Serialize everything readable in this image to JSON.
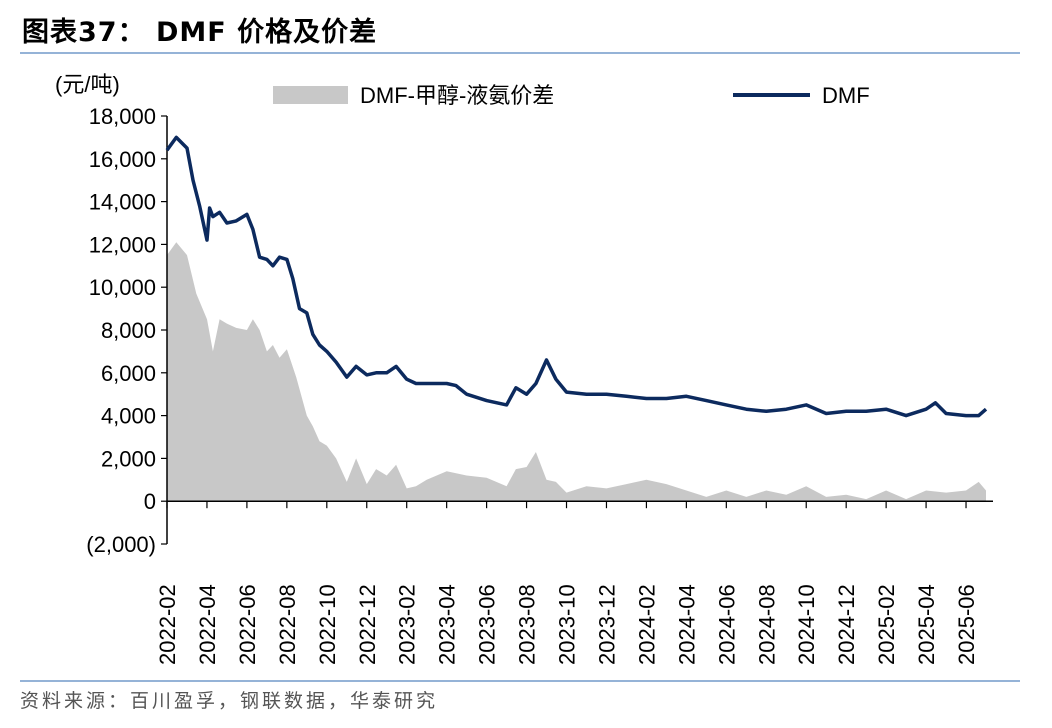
{
  "header": {
    "title": "图表37：  DMF 价格及价差"
  },
  "footer": {
    "source": "资料来源：百川盈孚，钢联数据，华泰研究"
  },
  "chart_data": {
    "type": "area",
    "ylabel": "(元/吨)",
    "ylim": [
      -2000,
      18000
    ],
    "y_ticks": [
      -2000,
      0,
      2000,
      4000,
      6000,
      8000,
      10000,
      12000,
      14000,
      16000,
      18000
    ],
    "y_tick_labels": [
      "(2,000)",
      "0",
      "2,000",
      "4,000",
      "6,000",
      "8,000",
      "10,000",
      "12,000",
      "14,000",
      "16,000",
      "18,000"
    ],
    "x_tick_labels": [
      "2022-02",
      "2022-04",
      "2022-06",
      "2022-08",
      "2022-10",
      "2022-12",
      "2023-02",
      "2023-04",
      "2023-06",
      "2023-08",
      "2023-10",
      "2023-12",
      "2024-02",
      "2024-04",
      "2024-06",
      "2024-08",
      "2024-10",
      "2024-12",
      "2025-02",
      "2025-04",
      "2025-06"
    ],
    "legend_position": "top",
    "grid": false,
    "series": [
      {
        "name": "DMF-甲醇-液氨价差",
        "type": "area",
        "color": "#c8c8c8",
        "x": [
          "2022-02",
          "2022-02-15",
          "2022-03",
          "2022-03-15",
          "2022-04",
          "2022-04-10",
          "2022-04-20",
          "2022-05",
          "2022-05-15",
          "2022-06",
          "2022-06-10",
          "2022-06-20",
          "2022-07",
          "2022-07-10",
          "2022-07-20",
          "2022-08",
          "2022-08-15",
          "2022-09",
          "2022-09-10",
          "2022-09-20",
          "2022-10",
          "2022-10-15",
          "2022-11",
          "2022-11-15",
          "2022-12",
          "2022-12-15",
          "2023-01",
          "2023-01-15",
          "2023-02",
          "2023-02-15",
          "2023-03",
          "2023-04",
          "2023-05",
          "2023-06",
          "2023-07",
          "2023-07-15",
          "2023-08",
          "2023-08-15",
          "2023-09",
          "2023-09-15",
          "2023-10",
          "2023-11",
          "2023-12",
          "2024-01",
          "2024-02",
          "2024-03",
          "2024-04",
          "2024-05",
          "2024-06",
          "2024-07",
          "2024-08",
          "2024-09",
          "2024-10",
          "2024-11",
          "2024-12",
          "2025-01",
          "2025-02",
          "2025-03",
          "2025-04",
          "2025-05",
          "2025-06",
          "2025-06-20",
          "2025-07"
        ],
        "values": [
          11500,
          12100,
          11500,
          9700,
          8500,
          7000,
          8500,
          8300,
          8100,
          8000,
          8500,
          8000,
          7000,
          7300,
          6700,
          7100,
          5800,
          4000,
          3500,
          2800,
          2600,
          2000,
          900,
          2000,
          800,
          1500,
          1200,
          1700,
          600,
          700,
          1000,
          1400,
          1200,
          1100,
          700,
          1500,
          1600,
          2300,
          1000,
          900,
          400,
          700,
          600,
          800,
          1000,
          800,
          500,
          200,
          500,
          200,
          500,
          300,
          700,
          200,
          300,
          100,
          500,
          100,
          500,
          400,
          500,
          900,
          500
        ]
      },
      {
        "name": "DMF",
        "type": "line",
        "color": "#0c2a5e",
        "x": [
          "2022-02",
          "2022-02-15",
          "2022-03",
          "2022-03-10",
          "2022-03-20",
          "2022-04",
          "2022-04-05",
          "2022-04-10",
          "2022-04-20",
          "2022-05",
          "2022-05-15",
          "2022-06",
          "2022-06-10",
          "2022-06-20",
          "2022-07",
          "2022-07-10",
          "2022-07-20",
          "2022-08",
          "2022-08-10",
          "2022-08-20",
          "2022-09",
          "2022-09-10",
          "2022-09-20",
          "2022-10",
          "2022-10-15",
          "2022-11",
          "2022-11-15",
          "2022-12",
          "2022-12-15",
          "2023-01",
          "2023-01-15",
          "2023-02",
          "2023-02-15",
          "2023-03",
          "2023-04",
          "2023-04-15",
          "2023-05",
          "2023-06",
          "2023-07",
          "2023-07-15",
          "2023-08",
          "2023-08-15",
          "2023-09",
          "2023-09-15",
          "2023-10",
          "2023-11",
          "2023-12",
          "2024-01",
          "2024-02",
          "2024-03",
          "2024-04",
          "2024-05",
          "2024-06",
          "2024-07",
          "2024-08",
          "2024-09",
          "2024-10",
          "2024-11",
          "2024-12",
          "2025-01",
          "2025-02",
          "2025-03",
          "2025-04",
          "2025-04-15",
          "2025-05",
          "2025-06",
          "2025-06-20",
          "2025-07"
        ],
        "values": [
          16400,
          17000,
          16500,
          15000,
          13800,
          12200,
          13700,
          13300,
          13500,
          13000,
          13100,
          13400,
          12700,
          11400,
          11300,
          11000,
          11400,
          11300,
          10400,
          9000,
          8800,
          7800,
          7300,
          7000,
          6500,
          5800,
          6300,
          5900,
          6000,
          6000,
          6300,
          5700,
          5500,
          5500,
          5500,
          5400,
          5000,
          4700,
          4500,
          5300,
          5000,
          5500,
          6600,
          5700,
          5100,
          5000,
          5000,
          4900,
          4800,
          4800,
          4900,
          4700,
          4500,
          4300,
          4200,
          4300,
          4500,
          4100,
          4200,
          4200,
          4300,
          4000,
          4300,
          4600,
          4100,
          4000,
          4000,
          4300
        ]
      }
    ]
  }
}
